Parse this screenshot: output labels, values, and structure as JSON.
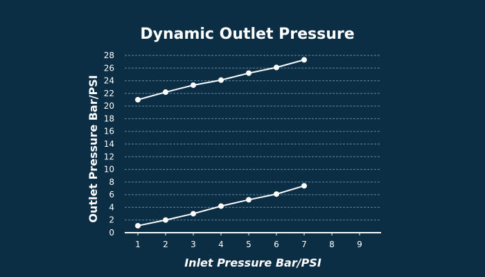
{
  "chart_data": {
    "type": "line",
    "title": "Dynamic Outlet Pressure",
    "xlabel": "Inlet Pressure Bar/PSI",
    "ylabel": "Outlet Pressure Bar/PSI",
    "x_ticks": [
      1,
      2,
      3,
      4,
      5,
      6,
      7,
      8,
      9
    ],
    "y_ticks": [
      0,
      2,
      4,
      6,
      8,
      10,
      12,
      14,
      16,
      18,
      20,
      22,
      24,
      26,
      28
    ],
    "xlim": [
      0.5,
      9.8
    ],
    "ylim": [
      0,
      28
    ],
    "grid": true,
    "series": [
      {
        "x": [
          1,
          2,
          3,
          4,
          5,
          6,
          7
        ],
        "values": [
          21.0,
          22.2,
          23.3,
          24.1,
          25.2,
          26.1,
          27.3
        ]
      },
      {
        "x": [
          1,
          2,
          3,
          4,
          5,
          6,
          7
        ],
        "values": [
          1.1,
          2.0,
          3.0,
          4.2,
          5.2,
          6.1,
          7.4
        ]
      }
    ],
    "colors": {
      "background": "#0c2e45",
      "line": "#ffffff",
      "grid": "#5f8aa6"
    }
  }
}
